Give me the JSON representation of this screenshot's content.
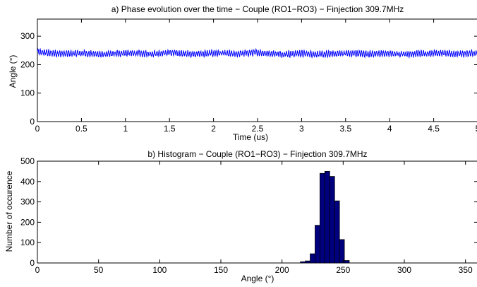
{
  "chart_data": [
    {
      "type": "line",
      "title": "a) Phase evolution over the time − Couple (RO1−RO3) − Finjection 309.7MHz",
      "xlabel": "Time (us)",
      "ylabel": "Angle (°)",
      "xlim": [
        0,
        5
      ],
      "ylim": [
        0,
        360
      ],
      "xticks": [
        0,
        0.5,
        1,
        1.5,
        2,
        2.5,
        3,
        3.5,
        4,
        4.5,
        5
      ],
      "xtick_labels": [
        "0",
        "0.5",
        "1",
        "1.5",
        "2",
        "2.5",
        "3",
        "3.5",
        "4",
        "4.5",
        "5"
      ],
      "yticks": [
        0,
        100,
        200,
        300
      ],
      "ytick_labels": [
        "0",
        "100",
        "200",
        "300"
      ],
      "grid": false,
      "color": "#0000ff",
      "series_summary": {
        "mean": 238,
        "min": 222,
        "max": 255,
        "cycles": 200
      },
      "series": [
        {
          "x": [
            0,
            0.25,
            0.5,
            0.75,
            1,
            1.25,
            1.5,
            1.75,
            2,
            2.25,
            2.5,
            2.75,
            3,
            3.25,
            3.5,
            3.75,
            4,
            4.25,
            4.5,
            4.75,
            5
          ],
          "values": [
            245,
            238,
            240,
            236,
            241,
            238,
            242,
            237,
            240,
            238,
            243,
            237,
            239,
            236,
            240,
            238,
            239,
            237,
            241,
            238,
            240
          ]
        }
      ]
    },
    {
      "type": "bar",
      "title": "b) Histogram − Couple (RO1−RO3) − Finjection 309.7MHz",
      "xlabel": "Angle (°)",
      "ylabel": "Number of occurence",
      "xlim": [
        0,
        360
      ],
      "ylim": [
        0,
        500
      ],
      "xticks": [
        0,
        50,
        100,
        150,
        200,
        250,
        300,
        350
      ],
      "xtick_labels": [
        "0",
        "50",
        "100",
        "150",
        "200",
        "250",
        "300",
        "350"
      ],
      "yticks": [
        0,
        100,
        200,
        300,
        400,
        500
      ],
      "ytick_labels": [
        "0",
        "100",
        "200",
        "300",
        "400",
        "500"
      ],
      "grid": false,
      "bar_color": "#00007f",
      "bin_width": 4,
      "bin_centers": [
        217,
        221,
        225,
        229,
        233,
        237,
        241,
        245,
        249,
        253
      ],
      "values": [
        6,
        10,
        45,
        185,
        440,
        450,
        425,
        305,
        115,
        12
      ]
    }
  ]
}
